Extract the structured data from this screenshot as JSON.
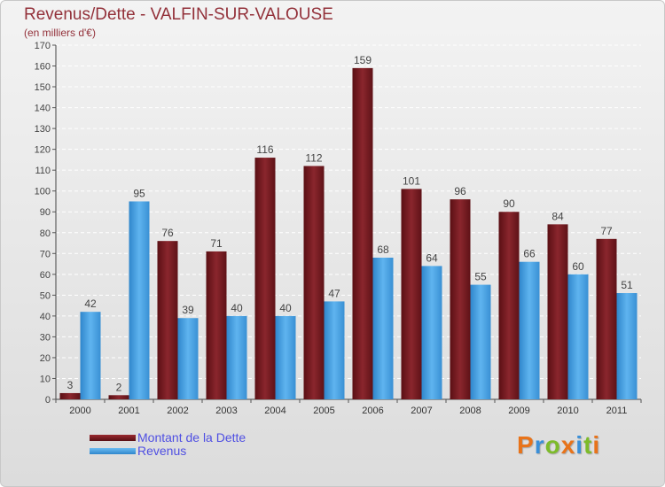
{
  "header": {
    "title": "Revenus/Dette - VALFIN-SUR-VALOUSE",
    "subtitle": "(en milliers d'€)"
  },
  "chart_data": {
    "type": "bar",
    "categories": [
      "2000",
      "2001",
      "2002",
      "2003",
      "2004",
      "2005",
      "2006",
      "2007",
      "2008",
      "2009",
      "2010",
      "2011"
    ],
    "series": [
      {
        "name": "Montant de la Dette",
        "color": "#7a1c22",
        "values": [
          3,
          2,
          76,
          71,
          116,
          112,
          159,
          101,
          96,
          90,
          84,
          77
        ]
      },
      {
        "name": "Revenus",
        "color": "#4aa3e6",
        "values": [
          42,
          95,
          39,
          40,
          40,
          47,
          68,
          64,
          55,
          66,
          60,
          51
        ]
      }
    ],
    "ylim": [
      0,
      170
    ],
    "ytick_step": 10,
    "grid": true,
    "data_labels": true,
    "legend_position": "bottom-left"
  },
  "logo": {
    "text": "Proxiti",
    "colors": [
      "#e8731a",
      "#3a8fd8",
      "#7dbb2a",
      "#e8731a",
      "#3a8fd8",
      "#7dbb2a",
      "#e8731a"
    ]
  }
}
